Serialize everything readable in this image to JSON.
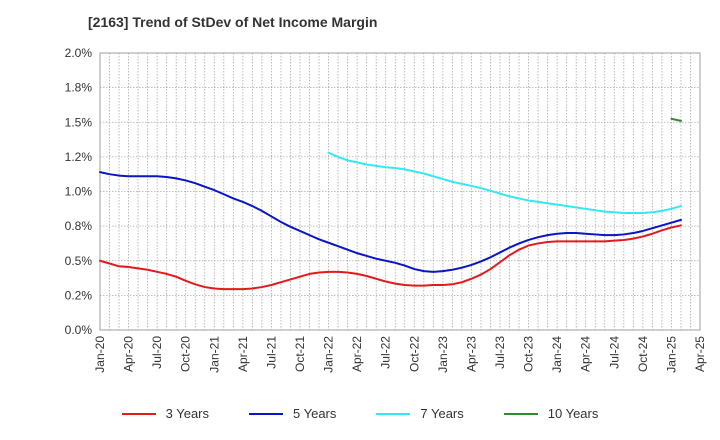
{
  "chart_data": {
    "type": "line",
    "title": "[2163]  Trend of StDev of Net Income Margin",
    "ylim": [
      0.0,
      2.0
    ],
    "yticks": [
      "0.0%",
      "0.2%",
      "0.5%",
      "0.8%",
      "1.0%",
      "1.2%",
      "1.5%",
      "1.8%",
      "2.0%"
    ],
    "xticks": [
      "Jan-20",
      "Apr-20",
      "Jul-20",
      "Oct-20",
      "Jan-21",
      "Apr-21",
      "Jul-21",
      "Oct-21",
      "Jan-22",
      "Apr-22",
      "Jul-22",
      "Oct-22",
      "Jan-23",
      "Apr-23",
      "Jul-23",
      "Oct-23",
      "Jan-24",
      "Apr-24",
      "Jul-24",
      "Oct-24",
      "Jan-25",
      "Apr-25"
    ],
    "grid": true,
    "legend_position": "bottom",
    "series": [
      {
        "name": "3 Years",
        "color": "#e31a1c",
        "points": [
          [
            "Jan-20",
            0.5
          ],
          [
            "Feb-20",
            0.48
          ],
          [
            "Mar-20",
            0.46
          ],
          [
            "Apr-20",
            0.455
          ],
          [
            "May-20",
            0.445
          ],
          [
            "Jun-20",
            0.435
          ],
          [
            "Jul-20",
            0.42
          ],
          [
            "Aug-20",
            0.405
          ],
          [
            "Sep-20",
            0.385
          ],
          [
            "Oct-20",
            0.355
          ],
          [
            "Nov-20",
            0.33
          ],
          [
            "Dec-20",
            0.31
          ],
          [
            "Jan-21",
            0.3
          ],
          [
            "Feb-21",
            0.295
          ],
          [
            "Mar-21",
            0.295
          ],
          [
            "Apr-21",
            0.295
          ],
          [
            "May-21",
            0.3
          ],
          [
            "Jun-21",
            0.31
          ],
          [
            "Jul-21",
            0.325
          ],
          [
            "Aug-21",
            0.345
          ],
          [
            "Sep-21",
            0.365
          ],
          [
            "Oct-21",
            0.385
          ],
          [
            "Nov-21",
            0.405
          ],
          [
            "Dec-21",
            0.415
          ],
          [
            "Jan-22",
            0.42
          ],
          [
            "Feb-22",
            0.42
          ],
          [
            "Mar-22",
            0.415
          ],
          [
            "Apr-22",
            0.405
          ],
          [
            "May-22",
            0.39
          ],
          [
            "Jun-22",
            0.37
          ],
          [
            "Jul-22",
            0.35
          ],
          [
            "Aug-22",
            0.335
          ],
          [
            "Sep-22",
            0.325
          ],
          [
            "Oct-22",
            0.32
          ],
          [
            "Nov-22",
            0.32
          ],
          [
            "Dec-22",
            0.325
          ],
          [
            "Jan-23",
            0.325
          ],
          [
            "Feb-23",
            0.33
          ],
          [
            "Mar-23",
            0.345
          ],
          [
            "Apr-23",
            0.37
          ],
          [
            "May-23",
            0.4
          ],
          [
            "Jun-23",
            0.44
          ],
          [
            "Jul-23",
            0.49
          ],
          [
            "Aug-23",
            0.54
          ],
          [
            "Sep-23",
            0.58
          ],
          [
            "Oct-23",
            0.61
          ],
          [
            "Nov-23",
            0.625
          ],
          [
            "Dec-23",
            0.635
          ],
          [
            "Jan-24",
            0.64
          ],
          [
            "Feb-24",
            0.64
          ],
          [
            "Mar-24",
            0.64
          ],
          [
            "Apr-24",
            0.64
          ],
          [
            "May-24",
            0.64
          ],
          [
            "Jun-24",
            0.64
          ],
          [
            "Jul-24",
            0.645
          ],
          [
            "Aug-24",
            0.65
          ],
          [
            "Sep-24",
            0.66
          ],
          [
            "Oct-24",
            0.675
          ],
          [
            "Nov-24",
            0.695
          ],
          [
            "Dec-24",
            0.72
          ],
          [
            "Jan-25",
            0.74
          ],
          [
            "Feb-25",
            0.755
          ]
        ]
      },
      {
        "name": "5 Years",
        "color": "#0a14c8",
        "points": [
          [
            "Jan-20",
            1.14
          ],
          [
            "Feb-20",
            1.125
          ],
          [
            "Mar-20",
            1.115
          ],
          [
            "Apr-20",
            1.11
          ],
          [
            "May-20",
            1.11
          ],
          [
            "Jun-20",
            1.11
          ],
          [
            "Jul-20",
            1.11
          ],
          [
            "Aug-20",
            1.105
          ],
          [
            "Sep-20",
            1.095
          ],
          [
            "Oct-20",
            1.08
          ],
          [
            "Nov-20",
            1.06
          ],
          [
            "Dec-20",
            1.035
          ],
          [
            "Jan-21",
            1.01
          ],
          [
            "Feb-21",
            0.98
          ],
          [
            "Mar-21",
            0.95
          ],
          [
            "Apr-21",
            0.925
          ],
          [
            "May-21",
            0.895
          ],
          [
            "Jun-21",
            0.86
          ],
          [
            "Jul-21",
            0.82
          ],
          [
            "Aug-21",
            0.78
          ],
          [
            "Sep-21",
            0.745
          ],
          [
            "Oct-21",
            0.715
          ],
          [
            "Nov-21",
            0.685
          ],
          [
            "Dec-21",
            0.655
          ],
          [
            "Jan-22",
            0.63
          ],
          [
            "Feb-22",
            0.605
          ],
          [
            "Mar-22",
            0.58
          ],
          [
            "Apr-22",
            0.555
          ],
          [
            "May-22",
            0.535
          ],
          [
            "Jun-22",
            0.515
          ],
          [
            "Jul-22",
            0.5
          ],
          [
            "Aug-22",
            0.485
          ],
          [
            "Sep-22",
            0.465
          ],
          [
            "Oct-22",
            0.44
          ],
          [
            "Nov-22",
            0.425
          ],
          [
            "Dec-22",
            0.42
          ],
          [
            "Jan-23",
            0.425
          ],
          [
            "Feb-23",
            0.435
          ],
          [
            "Mar-23",
            0.45
          ],
          [
            "Apr-23",
            0.47
          ],
          [
            "May-23",
            0.495
          ],
          [
            "Jun-23",
            0.525
          ],
          [
            "Jul-23",
            0.56
          ],
          [
            "Aug-23",
            0.595
          ],
          [
            "Sep-23",
            0.625
          ],
          [
            "Oct-23",
            0.65
          ],
          [
            "Nov-23",
            0.67
          ],
          [
            "Dec-23",
            0.685
          ],
          [
            "Jan-24",
            0.695
          ],
          [
            "Feb-24",
            0.7
          ],
          [
            "Mar-24",
            0.7
          ],
          [
            "Apr-24",
            0.695
          ],
          [
            "May-24",
            0.69
          ],
          [
            "Jun-24",
            0.685
          ],
          [
            "Jul-24",
            0.685
          ],
          [
            "Aug-24",
            0.69
          ],
          [
            "Sep-24",
            0.7
          ],
          [
            "Oct-24",
            0.715
          ],
          [
            "Nov-24",
            0.735
          ],
          [
            "Dec-24",
            0.755
          ],
          [
            "Jan-25",
            0.775
          ],
          [
            "Feb-25",
            0.795
          ]
        ]
      },
      {
        "name": "7 Years",
        "color": "#33e8f0",
        "points": [
          [
            "Jan-22",
            1.28
          ],
          [
            "Feb-22",
            1.25
          ],
          [
            "Mar-22",
            1.225
          ],
          [
            "Apr-22",
            1.21
          ],
          [
            "May-22",
            1.195
          ],
          [
            "Jun-22",
            1.185
          ],
          [
            "Jul-22",
            1.175
          ],
          [
            "Aug-22",
            1.17
          ],
          [
            "Sep-22",
            1.16
          ],
          [
            "Oct-22",
            1.145
          ],
          [
            "Nov-22",
            1.13
          ],
          [
            "Dec-22",
            1.11
          ],
          [
            "Jan-23",
            1.09
          ],
          [
            "Feb-23",
            1.07
          ],
          [
            "Mar-23",
            1.055
          ],
          [
            "Apr-23",
            1.04
          ],
          [
            "May-23",
            1.025
          ],
          [
            "Jun-23",
            1.005
          ],
          [
            "Jul-23",
            0.985
          ],
          [
            "Aug-23",
            0.965
          ],
          [
            "Sep-23",
            0.95
          ],
          [
            "Oct-23",
            0.935
          ],
          [
            "Nov-23",
            0.925
          ],
          [
            "Dec-23",
            0.915
          ],
          [
            "Jan-24",
            0.905
          ],
          [
            "Feb-24",
            0.895
          ],
          [
            "Mar-24",
            0.885
          ],
          [
            "Apr-24",
            0.875
          ],
          [
            "May-24",
            0.865
          ],
          [
            "Jun-24",
            0.855
          ],
          [
            "Jul-24",
            0.85
          ],
          [
            "Aug-24",
            0.845
          ],
          [
            "Sep-24",
            0.845
          ],
          [
            "Oct-24",
            0.845
          ],
          [
            "Nov-24",
            0.85
          ],
          [
            "Dec-24",
            0.86
          ],
          [
            "Jan-25",
            0.875
          ],
          [
            "Feb-25",
            0.895
          ]
        ]
      },
      {
        "name": "10 Years",
        "color": "#2e8b2e",
        "points": [
          [
            "Jan-25",
            1.525
          ],
          [
            "Feb-25",
            1.51
          ]
        ]
      }
    ]
  }
}
